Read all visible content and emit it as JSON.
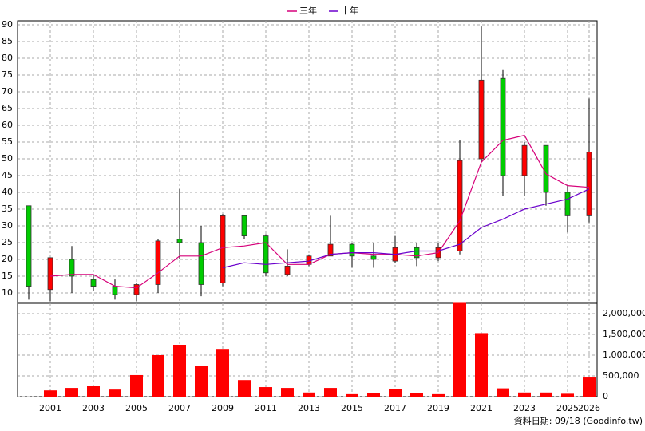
{
  "chart_data": [
    {
      "type": "candlestick",
      "categories": [
        null,
        "2001",
        null,
        "2003",
        null,
        "2005",
        null,
        "2007",
        null,
        "2009",
        null,
        "2011",
        null,
        "2013",
        null,
        "2015",
        null,
        "2017",
        null,
        "2019",
        null,
        "2021",
        null,
        "2023",
        null,
        "2025",
        "2026"
      ],
      "open": [
        36,
        11,
        20,
        14,
        12,
        9.5,
        12.5,
        26,
        25,
        13,
        33,
        27,
        15.5,
        18.5,
        21,
        24.5,
        21,
        19.5,
        23.5,
        20.5,
        22.5,
        50,
        74,
        45,
        54,
        40,
        33
      ],
      "high": [
        36,
        20.5,
        24,
        15.5,
        14,
        13,
        26,
        41,
        30,
        33.5,
        33,
        27.5,
        23,
        21.5,
        33,
        25,
        25,
        27,
        25,
        25,
        55.5,
        89.5,
        76.5,
        55,
        54,
        42,
        68
      ],
      "low": [
        8,
        7.5,
        10,
        10.5,
        8,
        7.5,
        10,
        20,
        9,
        12,
        26,
        15,
        15,
        18,
        21,
        17.5,
        17.5,
        19,
        18,
        19.5,
        21.5,
        49,
        39,
        39,
        36,
        28,
        31
      ],
      "close": [
        12,
        20.5,
        15,
        12,
        9.5,
        12.5,
        25.5,
        25,
        12.5,
        33,
        27,
        16,
        18,
        21,
        24.5,
        21,
        20,
        23.5,
        20.5,
        23.5,
        49.5,
        73.5,
        45,
        54,
        40,
        33,
        52
      ],
      "up_color": "#ff0000",
      "down_color": "#00cc00",
      "series": [
        {
          "name": "三年",
          "color": "#d6007a",
          "values": [
            null,
            15,
            15.5,
            15.5,
            12,
            11.5,
            16,
            21,
            21,
            23.5,
            24,
            25,
            18.5,
            18.5,
            21.5,
            22,
            21.5,
            21.5,
            21,
            22,
            31.5,
            49,
            55.5,
            57,
            45.5,
            42,
            41.5
          ]
        },
        {
          "name": "十年",
          "color": "#6a00cc",
          "values": [
            null,
            null,
            null,
            null,
            null,
            null,
            null,
            null,
            null,
            17.5,
            19,
            18.5,
            19,
            19.5,
            21.5,
            22,
            22,
            21.5,
            22.5,
            22.5,
            24.5,
            29.5,
            32,
            35,
            36.5,
            38,
            41
          ]
        }
      ],
      "ylim": [
        6.9,
        91.2
      ],
      "yticks": [
        10,
        15,
        20,
        25,
        30,
        35,
        40,
        45,
        50,
        55,
        60,
        65,
        70,
        75,
        80,
        85,
        90
      ],
      "grid": true
    },
    {
      "type": "bar",
      "values": [
        null,
        150000,
        210000,
        250000,
        170000,
        520000,
        1000000,
        1250000,
        750000,
        1150000,
        400000,
        230000,
        210000,
        100000,
        210000,
        60000,
        80000,
        190000,
        80000,
        60000,
        2260000,
        1530000,
        200000,
        100000,
        100000,
        70000,
        480000
      ],
      "color": "#ff0000",
      "ylim": [
        0,
        2250000
      ],
      "yticks": [
        0,
        {
          "value": 500000,
          "label": "500,000"
        },
        {
          "value": 1000000,
          "label": "1,000,000"
        },
        {
          "value": 1500000,
          "label": "1,500,000"
        },
        {
          "value": 2000000,
          "label": "2,000,000"
        }
      ],
      "grid": true,
      "source": "資料日期: 09/18 (Goodinfo.tw)"
    }
  ]
}
